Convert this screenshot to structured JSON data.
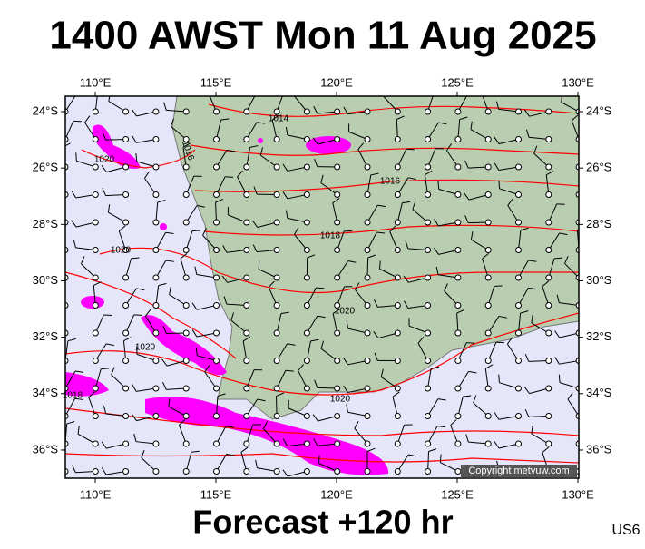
{
  "header": {
    "title": "1400 AWST Mon 11 Aug 2025"
  },
  "map": {
    "lon_ticks": [
      {
        "value": 110,
        "label": "110°E"
      },
      {
        "value": 115,
        "label": "115°E"
      },
      {
        "value": 120,
        "label": "120°E"
      },
      {
        "value": 125,
        "label": "125°E"
      },
      {
        "value": 130,
        "label": "130°E"
      }
    ],
    "lat_ticks": [
      {
        "value": -24,
        "label": "24°S"
      },
      {
        "value": -26,
        "label": "26°S"
      },
      {
        "value": -28,
        "label": "28°S"
      },
      {
        "value": -30,
        "label": "30°S"
      },
      {
        "value": -32,
        "label": "32°S"
      },
      {
        "value": -34,
        "label": "34°S"
      },
      {
        "value": -36,
        "label": "36°S"
      }
    ],
    "isobar_labels": [
      "1014",
      "1016",
      "1016",
      "1018",
      "1020",
      "1020",
      "1020",
      "1020",
      "1018",
      "1020"
    ],
    "copyright": "Copyright metvuw.com"
  },
  "footer": {
    "forecast": "Forecast +120 hr",
    "code": "US6"
  }
}
